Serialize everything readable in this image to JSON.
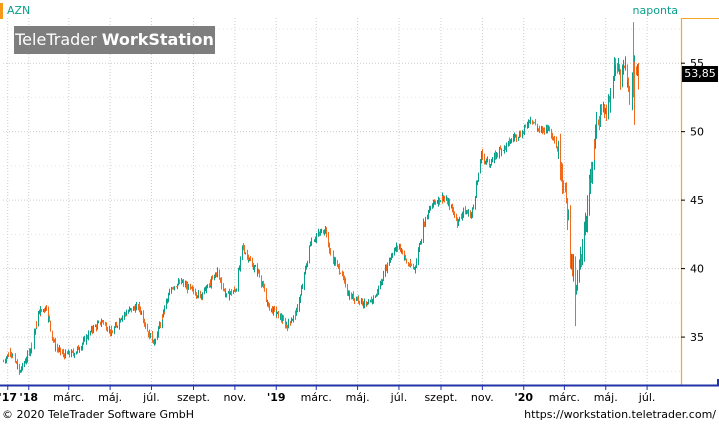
{
  "header": {
    "symbol": "AZN",
    "period": "naponta",
    "last_price": "53,85",
    "watermark_regular": "TeleTrader ",
    "watermark_bold": "WorkStation"
  },
  "footer": {
    "copyright": "© 2020 TeleTrader Software GmbH",
    "url": "https://workstation.teletrader.com/"
  },
  "colors": {
    "up_candle": "#0aa08a",
    "down_candle": "#f26b1d",
    "axis_line": "#2233aa",
    "grid": "#cccccc",
    "price_axis_highlight": "#f5a623",
    "watermark_bg": "#7e7e7e"
  },
  "chart_data": {
    "type": "candlestick",
    "symbol": "AZN",
    "y_ticks": [
      "35",
      "40",
      "45",
      "50",
      "55"
    ],
    "x_ticks": [
      {
        "label": "'17",
        "date": "2017-12-01"
      },
      {
        "label": "'18",
        "date": "2018-01-01"
      },
      {
        "label": "márc.",
        "date": "2018-03-01"
      },
      {
        "label": "máj.",
        "date": "2018-05-01"
      },
      {
        "label": "júl.",
        "date": "2018-07-01"
      },
      {
        "label": "szept.",
        "date": "2018-09-01"
      },
      {
        "label": "nov.",
        "date": "2018-11-01"
      },
      {
        "label": "'19",
        "date": "2019-01-01"
      },
      {
        "label": "márc.",
        "date": "2019-03-01"
      },
      {
        "label": "máj.",
        "date": "2019-05-01"
      },
      {
        "label": "júl.",
        "date": "2019-07-01"
      },
      {
        "label": "szept.",
        "date": "2019-09-01"
      },
      {
        "label": "nov.",
        "date": "2019-11-01"
      },
      {
        "label": "'20",
        "date": "2020-01-01"
      },
      {
        "label": "márc.",
        "date": "2020-03-01"
      },
      {
        "label": "máj.",
        "date": "2020-05-01"
      },
      {
        "label": "júl.",
        "date": "2020-07-01"
      }
    ],
    "x_range": [
      "2017-11-24",
      "2020-08-20"
    ],
    "y_range": [
      31.5,
      58.3
    ],
    "last_value": 53.85,
    "grid": true,
    "price_path": [
      [
        "2017-11-24",
        33.2
      ],
      [
        "2017-12-05",
        34.0
      ],
      [
        "2017-12-18",
        32.4
      ],
      [
        "2018-01-02",
        34.0
      ],
      [
        "2018-01-16",
        36.8
      ],
      [
        "2018-01-26",
        37.2
      ],
      [
        "2018-02-08",
        34.3
      ],
      [
        "2018-02-22",
        33.7
      ],
      [
        "2018-03-08",
        33.8
      ],
      [
        "2018-03-22",
        34.6
      ],
      [
        "2018-04-05",
        35.6
      ],
      [
        "2018-04-19",
        36.2
      ],
      [
        "2018-05-03",
        35.3
      ],
      [
        "2018-05-17",
        36.5
      ],
      [
        "2018-05-31",
        37.0
      ],
      [
        "2018-06-12",
        37.2
      ],
      [
        "2018-06-27",
        35.2
      ],
      [
        "2018-07-06",
        34.6
      ],
      [
        "2018-07-19",
        37.0
      ],
      [
        "2018-07-31",
        38.7
      ],
      [
        "2018-08-14",
        39.0
      ],
      [
        "2018-08-24",
        38.6
      ],
      [
        "2018-09-10",
        38.0
      ],
      [
        "2018-09-24",
        38.8
      ],
      [
        "2018-10-05",
        39.8
      ],
      [
        "2018-10-19",
        38.0
      ],
      [
        "2018-11-02",
        38.5
      ],
      [
        "2018-11-12",
        41.6
      ],
      [
        "2018-11-26",
        40.2
      ],
      [
        "2018-12-07",
        39.6
      ],
      [
        "2018-12-20",
        37.2
      ],
      [
        "2019-01-04",
        36.6
      ],
      [
        "2019-01-16",
        35.8
      ],
      [
        "2019-01-30",
        36.8
      ],
      [
        "2019-02-06",
        38.2
      ],
      [
        "2019-02-20",
        41.9
      ],
      [
        "2019-03-06",
        42.6
      ],
      [
        "2019-03-14",
        42.9
      ],
      [
        "2019-03-22",
        41.0
      ],
      [
        "2019-04-05",
        39.8
      ],
      [
        "2019-04-18",
        38.0
      ],
      [
        "2019-05-02",
        37.8
      ],
      [
        "2019-05-14",
        37.2
      ],
      [
        "2019-05-28",
        38.1
      ],
      [
        "2019-06-11",
        40.0
      ],
      [
        "2019-06-21",
        41.2
      ],
      [
        "2019-07-01",
        41.7
      ],
      [
        "2019-07-12",
        40.4
      ],
      [
        "2019-07-24",
        40.0
      ],
      [
        "2019-08-06",
        43.3
      ],
      [
        "2019-08-20",
        44.8
      ],
      [
        "2019-09-03",
        45.2
      ],
      [
        "2019-09-13",
        44.7
      ],
      [
        "2019-09-25",
        43.4
      ],
      [
        "2019-10-04",
        44.2
      ],
      [
        "2019-10-16",
        43.9
      ],
      [
        "2019-10-30",
        48.3
      ],
      [
        "2019-11-11",
        47.6
      ],
      [
        "2019-11-25",
        48.6
      ],
      [
        "2019-12-06",
        48.9
      ],
      [
        "2019-12-16",
        49.6
      ],
      [
        "2019-12-30",
        49.9
      ],
      [
        "2020-01-10",
        51.0
      ],
      [
        "2020-01-24",
        50.0
      ],
      [
        "2020-02-04",
        50.3
      ],
      [
        "2020-02-14",
        49.6
      ],
      [
        "2020-02-24",
        47.8
      ],
      [
        "2020-03-04",
        44.8
      ],
      [
        "2020-03-11",
        40.5
      ],
      [
        "2020-03-17",
        37.8
      ],
      [
        "2020-03-24",
        40.4
      ],
      [
        "2020-04-01",
        43.8
      ],
      [
        "2020-04-09",
        46.7
      ],
      [
        "2020-04-17",
        50.4
      ],
      [
        "2020-04-28",
        51.6
      ],
      [
        "2020-05-07",
        52.3
      ],
      [
        "2020-05-15",
        55.2
      ],
      [
        "2020-05-22",
        53.8
      ],
      [
        "2020-05-29",
        54.8
      ],
      [
        "2020-06-05",
        52.0
      ],
      [
        "2020-06-10",
        55.0
      ],
      [
        "2020-06-17",
        53.85
      ]
    ]
  }
}
